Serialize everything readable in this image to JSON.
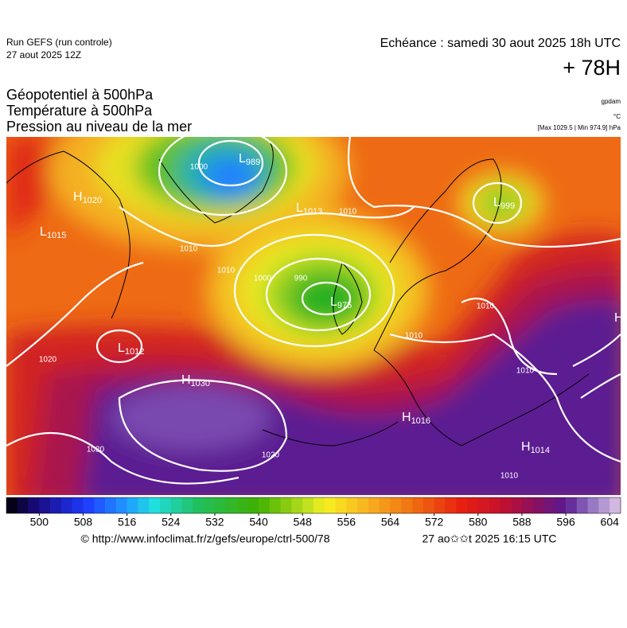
{
  "header": {
    "run": "Run GEFS (run controle)",
    "run_date": "27 aout 2025 12Z",
    "valid": "Echéance : samedi 30 aout 2025 18h UTC",
    "lead": "+ 78H"
  },
  "titles": [
    "Géopotentiel à 500hPa",
    "Température à 500hPa",
    "Pression au niveau de la mer"
  ],
  "units": [
    "gpdam",
    "°C",
    "[Max 1029.5 | Min 974.9] hPa"
  ],
  "centers": [
    {
      "letter": "H",
      "value": "1020"
    },
    {
      "letter": "L",
      "value": "1015"
    },
    {
      "letter": "L",
      "value": "989"
    },
    {
      "letter": "L",
      "value": "1013"
    },
    {
      "letter": "L",
      "value": "975"
    },
    {
      "letter": "L",
      "value": "1012"
    },
    {
      "letter": "H",
      "value": "1030"
    },
    {
      "letter": "H",
      "value": "1016"
    },
    {
      "letter": "H",
      "value": "1014"
    },
    {
      "letter": "L",
      "value": "999"
    },
    {
      "letter": "H",
      "value": ""
    }
  ],
  "isobar_labels": [
    "1010",
    "1000",
    "990",
    "1010",
    "1000",
    "1010",
    "1020",
    "1020",
    "1020",
    "1010",
    "1010",
    "1010",
    "1010"
  ],
  "scale": {
    "range": [
      494,
      606
    ],
    "ticks": [
      500,
      508,
      516,
      524,
      532,
      540,
      548,
      556,
      564,
      572,
      580,
      588,
      596,
      604
    ]
  },
  "footer": {
    "source": "© http://www.infoclimat.fr/z/gefs/europe/ctrl-500/78",
    "generated": "27 ao✩✩t 2025 16:15 UTC"
  }
}
